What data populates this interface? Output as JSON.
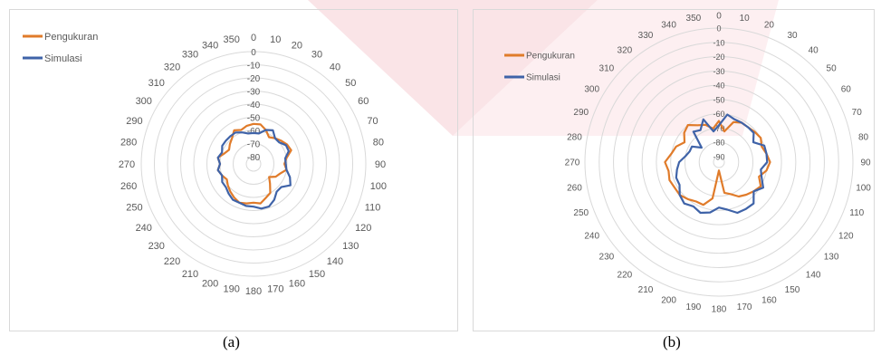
{
  "captions": [
    "(a)",
    "(b)"
  ],
  "chart_data": [
    {
      "type": "radar",
      "title": "",
      "legend": {
        "placement": "top-left",
        "entries": [
          "Pengukuran",
          "Simulasi"
        ]
      },
      "angle_labels": [
        "0",
        "10",
        "20",
        "30",
        "40",
        "50",
        "60",
        "70",
        "80",
        "90",
        "100",
        "110",
        "120",
        "130",
        "140",
        "150",
        "160",
        "170",
        "180",
        "190",
        "200",
        "210",
        "220",
        "230",
        "240",
        "250",
        "260",
        "270",
        "280",
        "290",
        "300",
        "310",
        "320",
        "330",
        "340",
        "350"
      ],
      "radial_labels": [
        "0",
        "-10",
        "-20",
        "-30",
        "-40",
        "-50",
        "-60",
        "-70",
        "-80"
      ],
      "rmin": -80,
      "rmax": 0,
      "grid": true,
      "series": [
        {
          "name": "Pengukuran",
          "color": "#e07b2a",
          "values": [
            -55,
            -55,
            -58,
            -62,
            -60,
            -58,
            -56,
            -55,
            -60,
            -62,
            -60,
            -64,
            -66,
            -70,
            -66,
            -60,
            -58,
            -55,
            -56,
            -55,
            -54,
            -56,
            -58,
            -60,
            -62,
            -60,
            -58,
            -60,
            -58,
            -62,
            -64,
            -62,
            -60,
            -56,
            -58,
            -56
          ]
        },
        {
          "name": "Simulasi",
          "color": "#3f63a8",
          "values": [
            -62,
            -62,
            -58,
            -56,
            -60,
            -60,
            -57,
            -57,
            -61,
            -61,
            -60,
            -56,
            -53,
            -58,
            -58,
            -54,
            -51,
            -51,
            -53,
            -53,
            -54,
            -54,
            -56,
            -58,
            -58,
            -60,
            -58,
            -60,
            -58,
            -60,
            -58,
            -58,
            -58,
            -58,
            -60,
            -62
          ]
        }
      ]
    },
    {
      "type": "radar",
      "title": "",
      "legend": {
        "placement": "top-left",
        "entries": [
          "Pengukuran",
          "Simulasi"
        ]
      },
      "angle_labels": [
        "0",
        "10",
        "20",
        "30",
        "40",
        "50",
        "60",
        "70",
        "80",
        "90",
        "100",
        "110",
        "120",
        "130",
        "140",
        "150",
        "160",
        "170",
        "180",
        "190",
        "200",
        "210",
        "220",
        "230",
        "240",
        "250",
        "260",
        "270",
        "280",
        "290",
        "300",
        "310",
        "320",
        "330",
        "340",
        "350"
      ],
      "radial_labels": [
        "0",
        "-10",
        "-20",
        "-30",
        "-40",
        "-50",
        "-60",
        "-70",
        "-80",
        "-90"
      ],
      "rmin": -90,
      "rmax": 0,
      "grid": true,
      "series": [
        {
          "name": "Pengukuran",
          "color": "#e07b2a",
          "values": [
            -65,
            -72,
            -64,
            -62,
            -62,
            -61,
            -60,
            -62,
            -60,
            -58,
            -60,
            -64,
            -60,
            -62,
            -64,
            -66,
            -70,
            -72,
            -88,
            -68,
            -62,
            -62,
            -60,
            -58,
            -58,
            -57,
            -58,
            -56,
            -60,
            -62,
            -66,
            -62,
            -60,
            -64,
            -66,
            -70
          ]
        },
        {
          "name": "Simulasi",
          "color": "#3f63a8",
          "values": [
            -68,
            -60,
            -62,
            -62,
            -62,
            -62,
            -66,
            -60,
            -60,
            -60,
            -64,
            -62,
            -58,
            -62,
            -56,
            -56,
            -56,
            -60,
            -62,
            -58,
            -56,
            -58,
            -56,
            -58,
            -62,
            -62,
            -64,
            -66,
            -70,
            -72,
            -72,
            -78,
            -66,
            -68,
            -62,
            -72
          ]
        }
      ]
    }
  ]
}
